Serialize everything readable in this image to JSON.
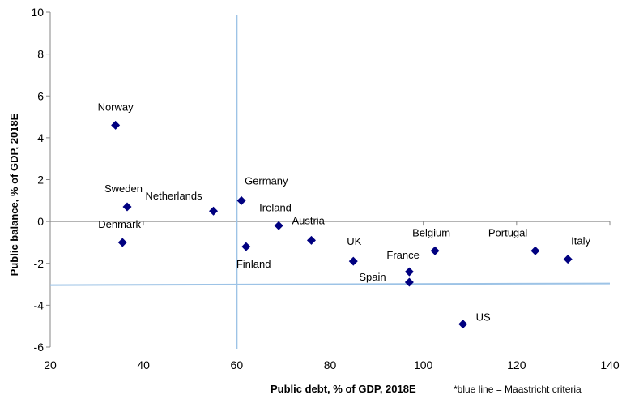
{
  "chart_data": {
    "type": "scatter",
    "xlabel": "Public debt, % of GDP, 2018E",
    "ylabel": "Public balance, % of GDP, 2018E",
    "note": "*blue line = Maastricht criteria",
    "xlim": [
      20,
      140
    ],
    "ylim": [
      -6,
      10
    ],
    "x_ticks": [
      20,
      40,
      60,
      80,
      100,
      120,
      140
    ],
    "y_ticks": [
      -6,
      -4,
      -2,
      0,
      2,
      4,
      6,
      8,
      10
    ],
    "grid": false,
    "marker_color": "#000080",
    "reference_line_color": "#9dc3e6",
    "reference_lines": {
      "x": 60,
      "y": -3
    },
    "points": [
      {
        "label": "Norway",
        "x": 34,
        "y": 4.6
      },
      {
        "label": "Sweden",
        "x": 36.5,
        "y": 0.7
      },
      {
        "label": "Denmark",
        "x": 35.5,
        "y": -1.0
      },
      {
        "label": "Netherlands",
        "x": 55,
        "y": 0.5
      },
      {
        "label": "Germany",
        "x": 61,
        "y": 1.0
      },
      {
        "label": "Finland",
        "x": 62,
        "y": -1.2
      },
      {
        "label": "Ireland",
        "x": 69,
        "y": -0.2
      },
      {
        "label": "Austria",
        "x": 76,
        "y": -0.9
      },
      {
        "label": "UK",
        "x": 85,
        "y": -1.9
      },
      {
        "label": "France",
        "x": 97,
        "y": -2.4
      },
      {
        "label": "Spain",
        "x": 97,
        "y": -2.9
      },
      {
        "label": "Belgium",
        "x": 102.5,
        "y": -1.4
      },
      {
        "label": "US",
        "x": 108.5,
        "y": -4.9
      },
      {
        "label": "Portugal",
        "x": 124,
        "y": -1.4
      },
      {
        "label": "Italy",
        "x": 131,
        "y": -1.8
      }
    ]
  }
}
